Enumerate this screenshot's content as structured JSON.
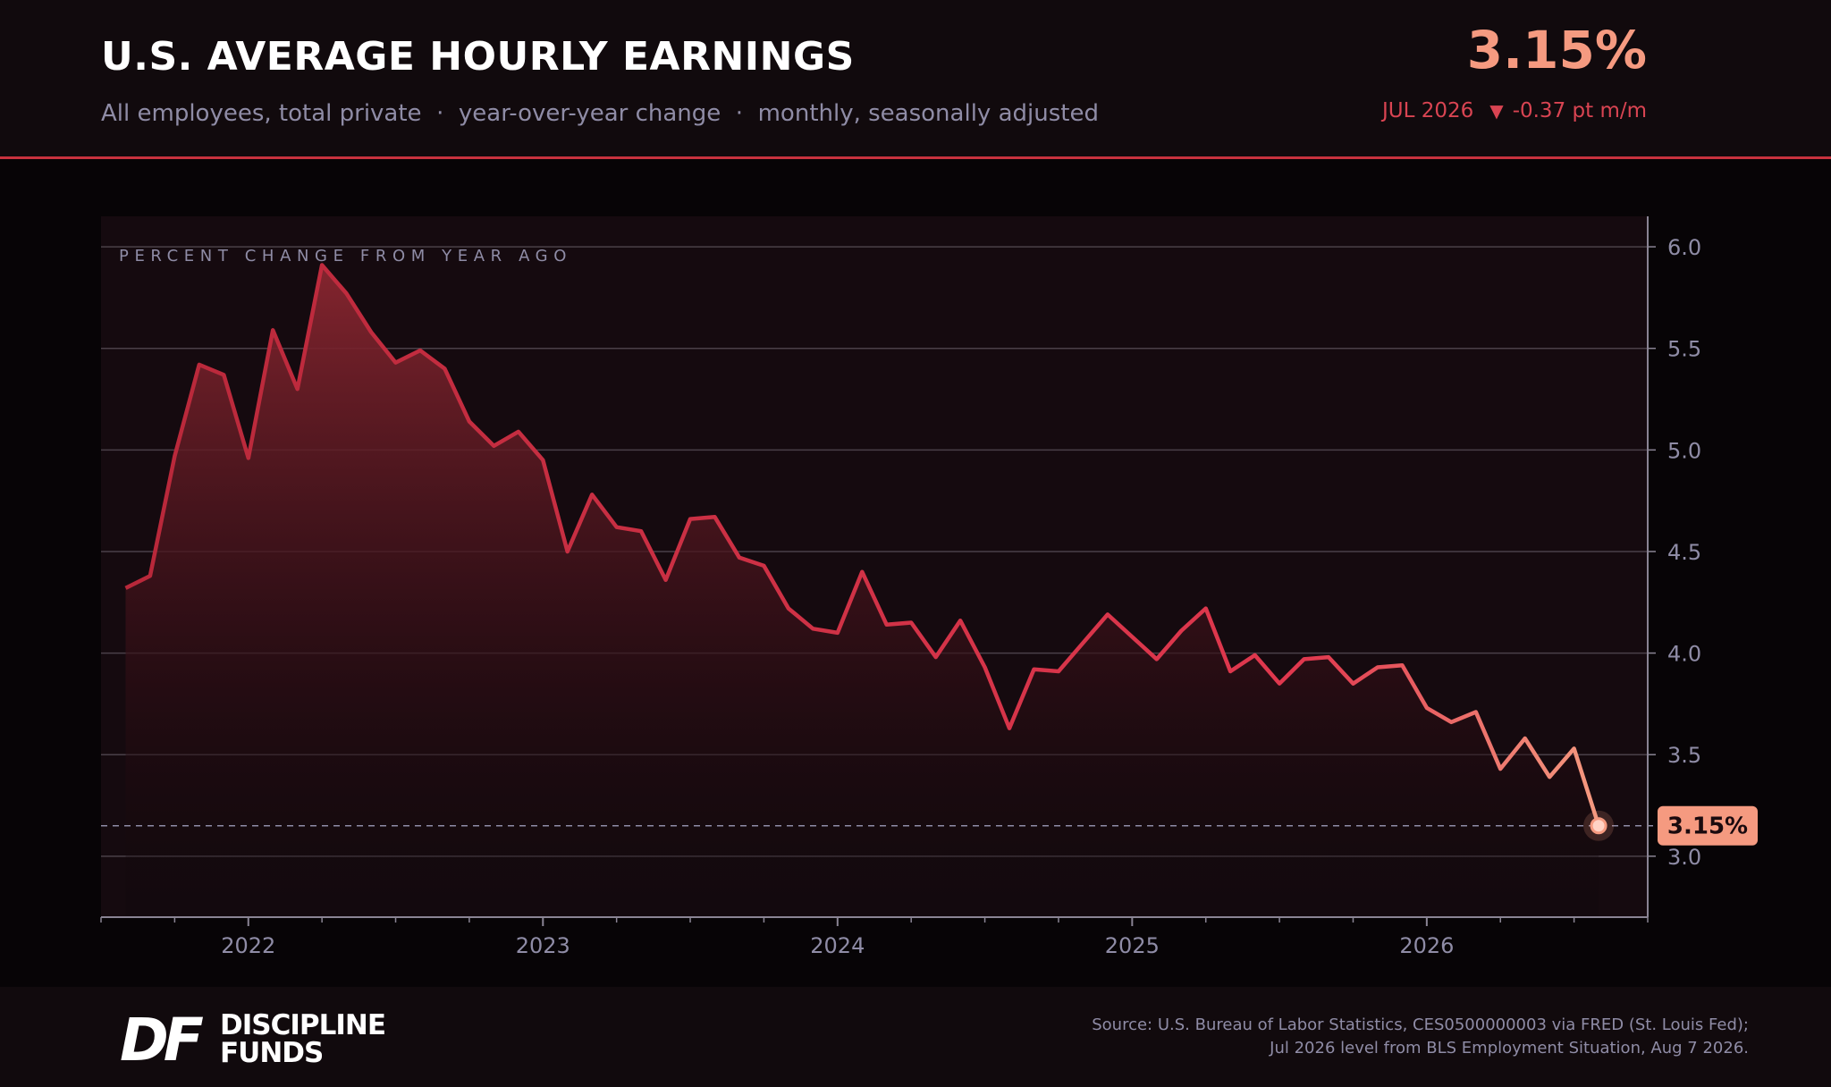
{
  "header": {
    "title": "U.S. AVERAGE HOURLY EARNINGS",
    "subtitle": "All employees, total private  ·  year-over-year change  ·  monthly, seasonally adjusted",
    "headline_value": "3.15%",
    "period": "JUL 2026",
    "change_arrow": "▼",
    "change_text": "-0.37 pt m/m"
  },
  "footer": {
    "logo_text_line1": "DISCIPLINE",
    "logo_text_line2": "FUNDS",
    "logo_mark": "DF",
    "source_line1": "Source: U.S. Bureau of Labor Statistics, CES0500000003 via FRED (St. Louis Fed);",
    "source_line2": "Jul 2026 level from BLS Employment Situation, Aug 7 2026."
  },
  "colors": {
    "accent": "#c8323e",
    "line": "#d9354a",
    "line_end": "#f59a80",
    "muted_text": "#8f8ca6",
    "background": "#070406"
  },
  "chart_data": {
    "type": "area",
    "title": "U.S. AVERAGE HOURLY EARNINGS",
    "ylabel": "PERCENT CHANGE FROM YEAR AGO",
    "ylim": [
      2.7,
      6.15
    ],
    "yticks": [
      3.0,
      3.5,
      4.0,
      4.5,
      5.0,
      5.5,
      6.0
    ],
    "ytick_labels": [
      "3.0",
      "3.5",
      "4.0",
      "4.5",
      "5.0",
      "5.5",
      "6.0"
    ],
    "xlim": [
      "2021-07",
      "2026-10"
    ],
    "xticks": [
      "2022-01",
      "2023-01",
      "2024-01",
      "2025-01",
      "2026-01"
    ],
    "xtick_labels": [
      "2022",
      "2023",
      "2024",
      "2025",
      "2026"
    ],
    "grid": true,
    "latest_label": "3.15%",
    "latest_value": 3.15,
    "reference_line": 3.15,
    "series": [
      {
        "start": "2021-08",
        "frequency": "monthly",
        "values": [
          4.32,
          4.38,
          4.97,
          5.42,
          5.37,
          4.96,
          5.59,
          5.3,
          5.91,
          5.77,
          5.58,
          5.43,
          5.49,
          5.4,
          5.14,
          5.02,
          5.09,
          4.95,
          4.5,
          4.78,
          4.62,
          4.6,
          4.36,
          4.66,
          4.67,
          4.47,
          4.43,
          4.22,
          4.12,
          4.1,
          4.4,
          4.14,
          4.15,
          3.98,
          4.16,
          3.93,
          3.63,
          3.92,
          3.91,
          4.05,
          4.19,
          4.08,
          3.97,
          4.11,
          4.22,
          3.91,
          3.99,
          3.85,
          3.97,
          3.98,
          3.85,
          3.93,
          3.94,
          3.73,
          3.66,
          3.71,
          3.43,
          3.58,
          3.39,
          3.53,
          3.15
        ]
      }
    ]
  }
}
